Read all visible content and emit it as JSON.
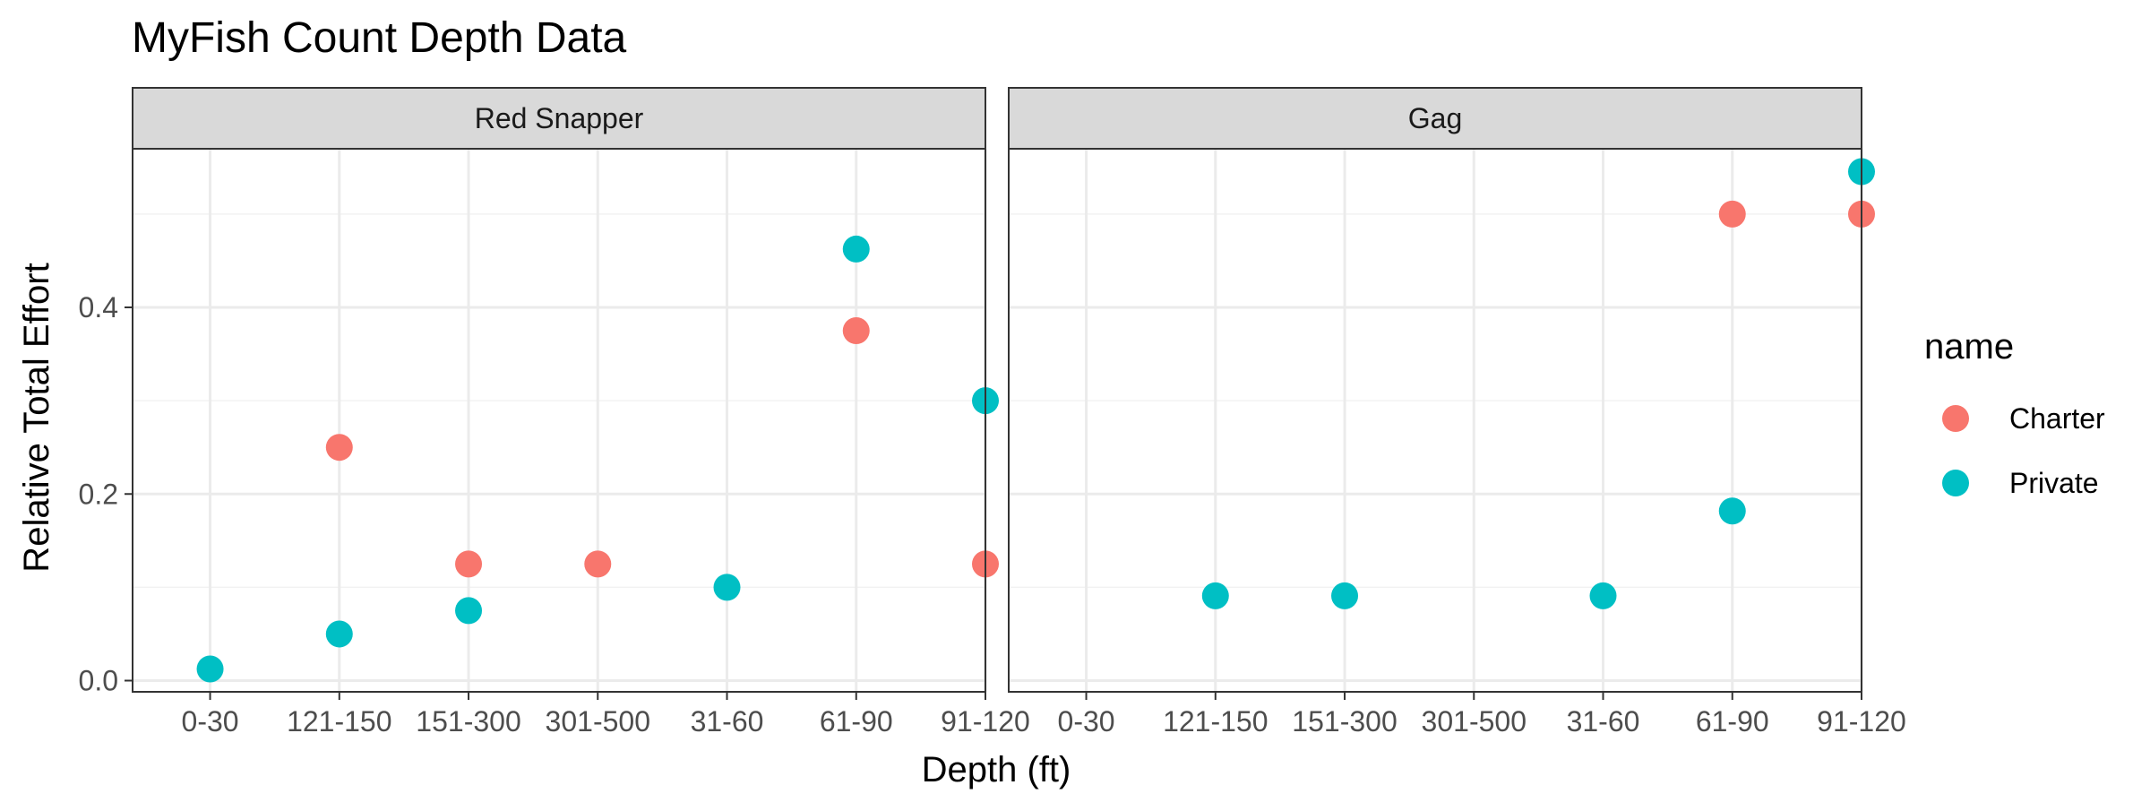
{
  "chart_data": {
    "type": "scatter",
    "title": "MyFish Count Depth Data",
    "xlabel": "Depth (ft)",
    "ylabel": "Relative Total Effort",
    "categories": [
      "0-30",
      "121-150",
      "151-300",
      "301-500",
      "31-60",
      "61-90",
      "91-120"
    ],
    "ylim": [
      -0.012,
      0.57
    ],
    "yticks": [
      0.0,
      0.2,
      0.4
    ],
    "ytick_labels": [
      "0.0",
      "0.2",
      "0.4"
    ],
    "grid": true,
    "legend": {
      "title": "name",
      "position": "right",
      "entries": [
        {
          "label": "Charter",
          "color": "#F8766D"
        },
        {
          "label": "Private",
          "color": "#00BFC4"
        }
      ]
    },
    "panels": [
      {
        "title": "Red Snapper",
        "series": [
          {
            "name": "Charter",
            "color": "#F8766D",
            "points": [
              {
                "x": "121-150",
                "y": 0.25
              },
              {
                "x": "151-300",
                "y": 0.125
              },
              {
                "x": "301-500",
                "y": 0.125
              },
              {
                "x": "61-90",
                "y": 0.375
              },
              {
                "x": "91-120",
                "y": 0.125
              }
            ]
          },
          {
            "name": "Private",
            "color": "#00BFC4",
            "points": [
              {
                "x": "0-30",
                "y": 0.0125
              },
              {
                "x": "121-150",
                "y": 0.05
              },
              {
                "x": "151-300",
                "y": 0.075
              },
              {
                "x": "31-60",
                "y": 0.1
              },
              {
                "x": "61-90",
                "y": 0.4625
              },
              {
                "x": "91-120",
                "y": 0.3
              }
            ]
          }
        ]
      },
      {
        "title": "Gag",
        "series": [
          {
            "name": "Charter",
            "color": "#F8766D",
            "points": [
              {
                "x": "61-90",
                "y": 0.5
              },
              {
                "x": "91-120",
                "y": 0.5
              }
            ]
          },
          {
            "name": "Private",
            "color": "#00BFC4",
            "points": [
              {
                "x": "121-150",
                "y": 0.0909
              },
              {
                "x": "151-300",
                "y": 0.0909
              },
              {
                "x": "31-60",
                "y": 0.0909
              },
              {
                "x": "61-90",
                "y": 0.1818
              },
              {
                "x": "91-120",
                "y": 0.5455
              }
            ]
          }
        ]
      }
    ]
  }
}
